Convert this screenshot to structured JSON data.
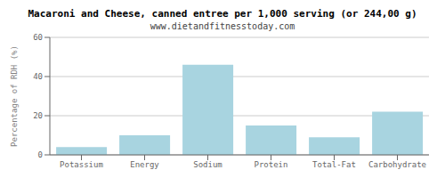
{
  "chart_data": {
    "type": "bar",
    "title": "Macaroni and Cheese, canned entree per 1,000 serving (or 244,00 g)",
    "subtitle": "www.dietandfitnesstoday.com",
    "categories": [
      "Potassium",
      "Energy",
      "Sodium",
      "Protein",
      "Total-Fat",
      "Carbohydrate"
    ],
    "values": [
      4,
      10,
      46,
      15,
      9,
      22
    ],
    "color": "#a8d4e0",
    "ylabel": "Percentage of RDH (%)",
    "ylim": [
      0,
      60
    ],
    "yticks": [
      0,
      20,
      40,
      60
    ],
    "grid": true
  }
}
